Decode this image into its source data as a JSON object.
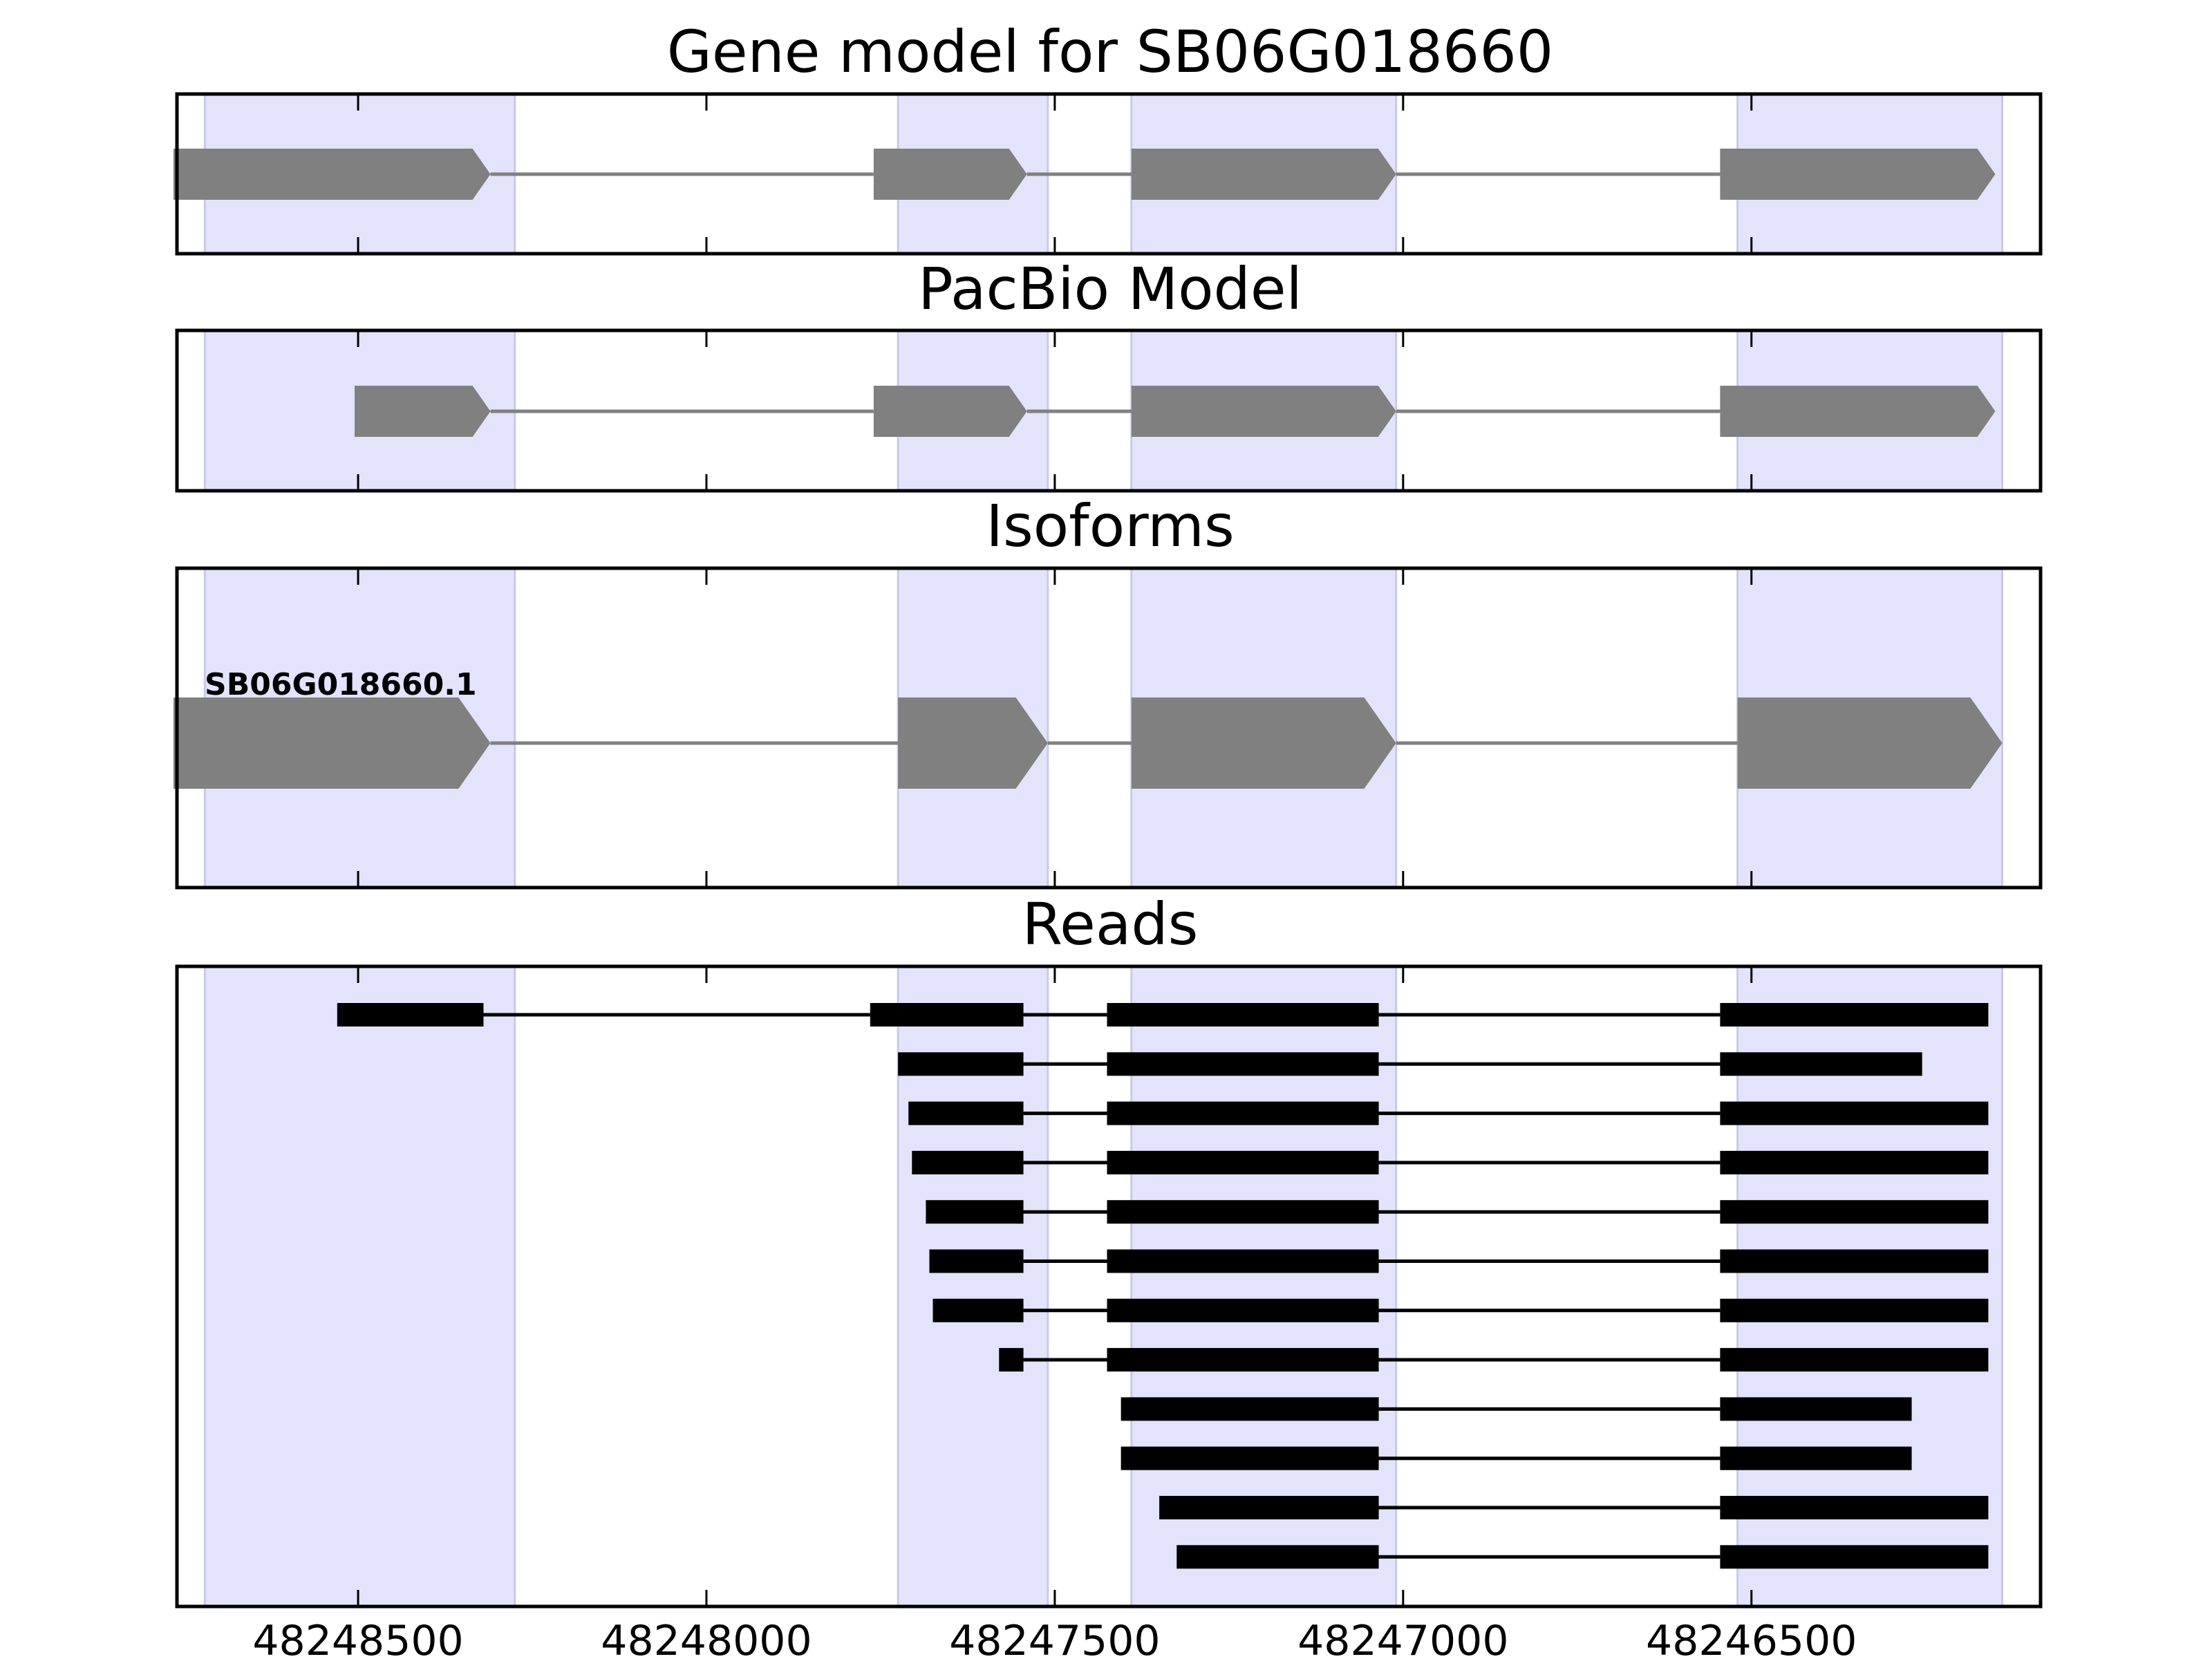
{
  "chart_data": {
    "type": "gene-structure",
    "x_axis": {
      "reversed": true,
      "xlim": [
        48248760,
        48246085
      ],
      "ticks": [
        48248500,
        48248000,
        48247500,
        48247000,
        48246500
      ],
      "tick_labels": [
        "48248500",
        "48248000",
        "48247500",
        "48247000",
        "48246500"
      ]
    },
    "exon_regions": [
      [
        48248720,
        48248275
      ],
      [
        48247725,
        48247510
      ],
      [
        48247390,
        48247010
      ],
      [
        48246520,
        48246140
      ]
    ],
    "colors": {
      "exon_highlight": "#e3e3fb",
      "model_exon": "#808080",
      "intron": "#808080",
      "read": "#000000",
      "frame": "#000000"
    },
    "panels": [
      {
        "id": "gene-model",
        "title": "Gene model for SB06G018660",
        "models": [
          {
            "label": "",
            "exons": [
              [
                48248765,
                48248310
              ],
              [
                48247760,
                48247540
              ],
              [
                48247390,
                48247010
              ],
              [
                48246545,
                48246150
              ]
            ]
          }
        ]
      },
      {
        "id": "pacbio-model",
        "title": "PacBio Model",
        "models": [
          {
            "label": "",
            "exons": [
              [
                48248505,
                48248310
              ],
              [
                48247760,
                48247540
              ],
              [
                48247390,
                48247010
              ],
              [
                48246545,
                48246150
              ]
            ]
          }
        ]
      },
      {
        "id": "isoforms",
        "title": "Isoforms",
        "models": [
          {
            "label": "SB06G018660.1",
            "exons": [
              [
                48248765,
                48248310
              ],
              [
                48247725,
                48247510
              ],
              [
                48247390,
                48247010
              ],
              [
                48246520,
                48246140
              ]
            ]
          }
        ]
      },
      {
        "id": "reads",
        "title": "Reads",
        "reads": [
          [
            [
              48248530,
              48248320
            ],
            [
              48247765,
              48247545
            ],
            [
              48247425,
              48247035
            ],
            [
              48246545,
              48246160
            ]
          ],
          [
            [
              48247725,
              48247545
            ],
            [
              48247425,
              48247035
            ],
            [
              48246545,
              48246255
            ]
          ],
          [
            [
              48247710,
              48247545
            ],
            [
              48247425,
              48247035
            ],
            [
              48246545,
              48246160
            ]
          ],
          [
            [
              48247705,
              48247545
            ],
            [
              48247425,
              48247035
            ],
            [
              48246545,
              48246160
            ]
          ],
          [
            [
              48247685,
              48247545
            ],
            [
              48247425,
              48247035
            ],
            [
              48246545,
              48246160
            ]
          ],
          [
            [
              48247680,
              48247545
            ],
            [
              48247425,
              48247035
            ],
            [
              48246545,
              48246160
            ]
          ],
          [
            [
              48247675,
              48247545
            ],
            [
              48247425,
              48247035
            ],
            [
              48246545,
              48246160
            ]
          ],
          [
            [
              48247580,
              48247545
            ],
            [
              48247425,
              48247035
            ],
            [
              48246545,
              48246160
            ]
          ],
          [
            [
              48247405,
              48247035
            ],
            [
              48246545,
              48246270
            ]
          ],
          [
            [
              48247405,
              48247035
            ],
            [
              48246545,
              48246270
            ]
          ],
          [
            [
              48247350,
              48247035
            ],
            [
              48246545,
              48246160
            ]
          ],
          [
            [
              48247325,
              48247035
            ],
            [
              48246545,
              48246160
            ]
          ]
        ]
      }
    ]
  }
}
